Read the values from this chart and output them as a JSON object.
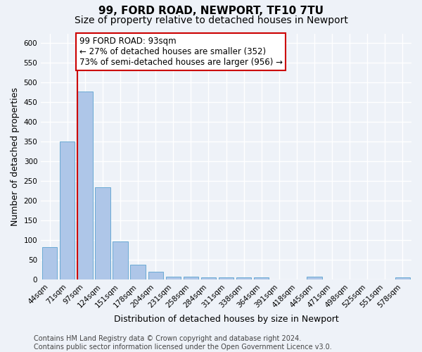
{
  "title": "99, FORD ROAD, NEWPORT, TF10 7TU",
  "subtitle": "Size of property relative to detached houses in Newport",
  "xlabel": "Distribution of detached houses by size in Newport",
  "ylabel": "Number of detached properties",
  "categories": [
    "44sqm",
    "71sqm",
    "97sqm",
    "124sqm",
    "151sqm",
    "178sqm",
    "204sqm",
    "231sqm",
    "258sqm",
    "284sqm",
    "311sqm",
    "338sqm",
    "364sqm",
    "391sqm",
    "418sqm",
    "445sqm",
    "471sqm",
    "498sqm",
    "525sqm",
    "551sqm",
    "578sqm"
  ],
  "values": [
    83,
    350,
    478,
    235,
    97,
    38,
    20,
    7,
    7,
    5,
    5,
    5,
    5,
    0,
    0,
    7,
    0,
    0,
    0,
    0,
    5
  ],
  "bar_color": "#aec6e8",
  "bar_edge_color": "#6aaad4",
  "property_line_color": "#cc0000",
  "annotation_text": "99 FORD ROAD: 93sqm\n← 27% of detached houses are smaller (352)\n73% of semi-detached houses are larger (956) →",
  "annotation_box_color": "#cc0000",
  "ylim": [
    0,
    625
  ],
  "yticks": [
    0,
    50,
    100,
    150,
    200,
    250,
    300,
    350,
    400,
    450,
    500,
    550,
    600
  ],
  "footer_text": "Contains HM Land Registry data © Crown copyright and database right 2024.\nContains public sector information licensed under the Open Government Licence v3.0.",
  "background_color": "#eef2f8",
  "grid_color": "#ffffff",
  "title_fontsize": 11,
  "subtitle_fontsize": 10,
  "axis_label_fontsize": 9,
  "tick_fontsize": 7.5,
  "footer_fontsize": 7,
  "annotation_fontsize": 8.5
}
